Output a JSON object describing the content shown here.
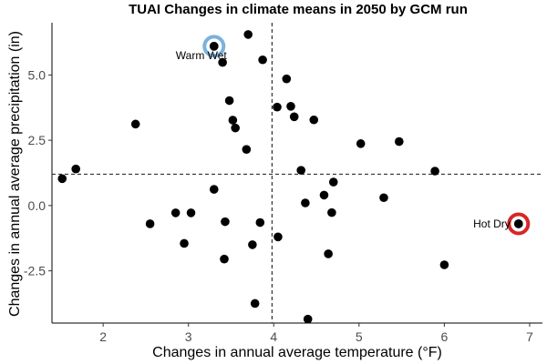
{
  "chart_data": {
    "type": "scatter",
    "title": "TUAI Changes in climate means in 2050 by GCM run",
    "xlabel": "Changes in annual average temperature (°F)",
    "ylabel": "Changes in annual average precipitation (in)",
    "xlim": [
      1.4,
      7.15
    ],
    "ylim": [
      -4.5,
      7.0
    ],
    "x_ticks": [
      2,
      3,
      4,
      5,
      6,
      7
    ],
    "y_ticks": [
      -2.5,
      0.0,
      2.5,
      5.0
    ],
    "x_tick_labels": [
      "2",
      "3",
      "4",
      "5",
      "6",
      "7"
    ],
    "y_tick_labels": [
      "-2.5",
      "0.0",
      "2.5",
      "5.0"
    ],
    "grid": false,
    "reference_lines": {
      "vertical_x": 3.98,
      "horizontal_y": 1.2
    },
    "highlights": [
      {
        "label": "Warm Wet",
        "x": 3.3,
        "y": 6.1,
        "color": "#7ab2dc",
        "label_position": "below"
      },
      {
        "label": "Hot Dry",
        "x": 6.87,
        "y": -0.7,
        "color": "#d62728",
        "label_position": "left"
      }
    ],
    "point_color": "#000000",
    "points": [
      {
        "x": 1.52,
        "y": 1.03
      },
      {
        "x": 1.68,
        "y": 1.4
      },
      {
        "x": 2.38,
        "y": 3.12
      },
      {
        "x": 2.55,
        "y": -0.7
      },
      {
        "x": 2.85,
        "y": -0.28
      },
      {
        "x": 2.95,
        "y": -1.45
      },
      {
        "x": 3.03,
        "y": -0.28
      },
      {
        "x": 3.3,
        "y": 6.1
      },
      {
        "x": 3.3,
        "y": 0.62
      },
      {
        "x": 3.4,
        "y": 5.48
      },
      {
        "x": 3.42,
        "y": -2.05
      },
      {
        "x": 3.43,
        "y": -0.62
      },
      {
        "x": 3.48,
        "y": 4.02
      },
      {
        "x": 3.52,
        "y": 3.27
      },
      {
        "x": 3.55,
        "y": 2.97
      },
      {
        "x": 3.7,
        "y": 6.55
      },
      {
        "x": 3.68,
        "y": 2.15
      },
      {
        "x": 3.75,
        "y": -1.5
      },
      {
        "x": 3.78,
        "y": -3.75
      },
      {
        "x": 3.84,
        "y": -0.65
      },
      {
        "x": 3.87,
        "y": 5.58
      },
      {
        "x": 4.04,
        "y": 3.77
      },
      {
        "x": 4.05,
        "y": -1.2
      },
      {
        "x": 4.15,
        "y": 4.85
      },
      {
        "x": 4.2,
        "y": 3.8
      },
      {
        "x": 4.24,
        "y": 3.4
      },
      {
        "x": 4.32,
        "y": 1.35
      },
      {
        "x": 4.37,
        "y": 0.1
      },
      {
        "x": 4.4,
        "y": -4.35
      },
      {
        "x": 4.47,
        "y": 3.28
      },
      {
        "x": 4.59,
        "y": 0.4
      },
      {
        "x": 4.64,
        "y": -1.85
      },
      {
        "x": 4.68,
        "y": -0.27
      },
      {
        "x": 4.7,
        "y": 0.9
      },
      {
        "x": 5.02,
        "y": 2.37
      },
      {
        "x": 5.29,
        "y": 0.3
      },
      {
        "x": 5.47,
        "y": 2.45
      },
      {
        "x": 5.89,
        "y": 1.32
      },
      {
        "x": 6.0,
        "y": -2.27
      },
      {
        "x": 6.87,
        "y": -0.7
      }
    ]
  }
}
